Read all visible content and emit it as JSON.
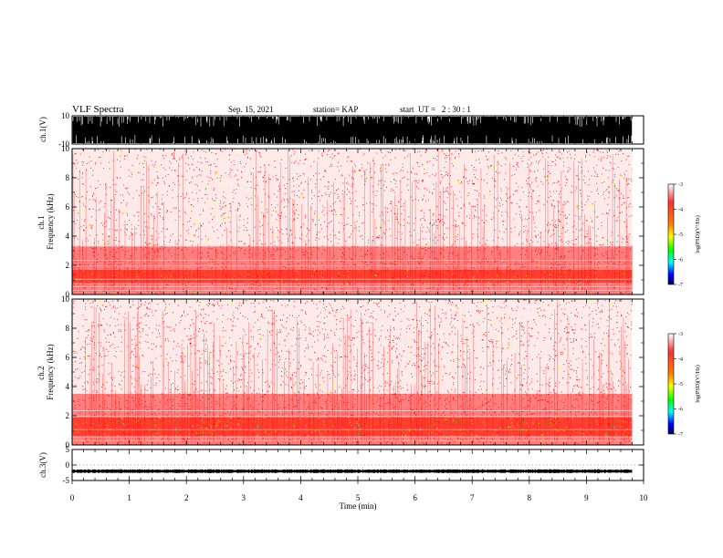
{
  "header": {
    "title": "VLF Spectra",
    "date": "Sep. 15, 2021",
    "station": "station= KAP",
    "start": "start  UT =   2 : 30 : 1"
  },
  "chart_data": [
    {
      "type": "line",
      "panel": "ch1-waveform",
      "ylabel": "ch.1(V)",
      "ylim": [
        -10,
        10
      ],
      "yticks": [
        "10",
        "-10"
      ],
      "xlim": [
        0,
        10
      ],
      "note_series": "dense saturated waveform between about -10 and 10 V, ending near 9.8 min"
    },
    {
      "type": "heatmap",
      "panel": "ch1-spectrogram",
      "ylabel": "ch.1\nFrequency (kHz)",
      "ylabel_lines": [
        "ch.1",
        "Frequency (kHz)"
      ],
      "ylim": [
        0,
        10
      ],
      "yticks": [
        "0",
        "2",
        "4",
        "6",
        "8",
        "10"
      ],
      "xlim": [
        0,
        10
      ],
      "data_end_min": 9.8,
      "bands": [
        {
          "from_khz": 0.0,
          "to_khz": 0.8,
          "level": "medium"
        },
        {
          "from_khz": 0.8,
          "to_khz": 1.7,
          "level": "high"
        },
        {
          "from_khz": 1.7,
          "to_khz": 3.3,
          "level": "medium"
        },
        {
          "from_khz": 3.3,
          "to_khz": 10.0,
          "level": "low"
        }
      ],
      "colorbar": {
        "label": "log(PSD)(V²/Hz)",
        "ticks": [
          "-3",
          "-4",
          "-5",
          "-6",
          "-7"
        ],
        "range": [
          -7,
          -3
        ]
      }
    },
    {
      "type": "heatmap",
      "panel": "ch2-spectrogram",
      "ylabel": "ch.2\nFrequency (kHz)",
      "ylabel_lines": [
        "ch.2",
        "Frequency (kHz)"
      ],
      "ylim": [
        0,
        10
      ],
      "yticks": [
        "0",
        "2",
        "4",
        "6",
        "8",
        "10"
      ],
      "xlim": [
        0,
        10
      ],
      "data_end_min": 9.8,
      "bands": [
        {
          "from_khz": 0.0,
          "to_khz": 0.6,
          "level": "medium"
        },
        {
          "from_khz": 0.6,
          "to_khz": 1.9,
          "level": "very-high"
        },
        {
          "from_khz": 1.9,
          "to_khz": 3.5,
          "level": "medium"
        },
        {
          "from_khz": 3.5,
          "to_khz": 10.0,
          "level": "low"
        }
      ],
      "colorbar": {
        "label": "log(PSD)(V²/Hz)",
        "ticks": [
          "-3",
          "-4",
          "-5",
          "-6",
          "-7"
        ],
        "range": [
          -7,
          -3
        ]
      }
    },
    {
      "type": "line",
      "panel": "ch3-waveform",
      "ylabel": "ch.3(V)",
      "ylim": [
        -5,
        5
      ],
      "yticks": [
        "5",
        "0",
        "-5"
      ],
      "xlim": [
        0,
        10
      ],
      "xlabel": "Time (min)",
      "xticks": [
        "0",
        "1",
        "2",
        "3",
        "4",
        "5",
        "6",
        "7",
        "8",
        "9",
        "10"
      ],
      "baseline_v": -2,
      "amplitude_v": 0.5
    }
  ],
  "colors": {
    "low": "#ff0000",
    "yellow": "#ffff00",
    "green": "#00ff00",
    "cyan": "#00ffff",
    "blue": "#0000ff",
    "darkblue": "#000080"
  }
}
